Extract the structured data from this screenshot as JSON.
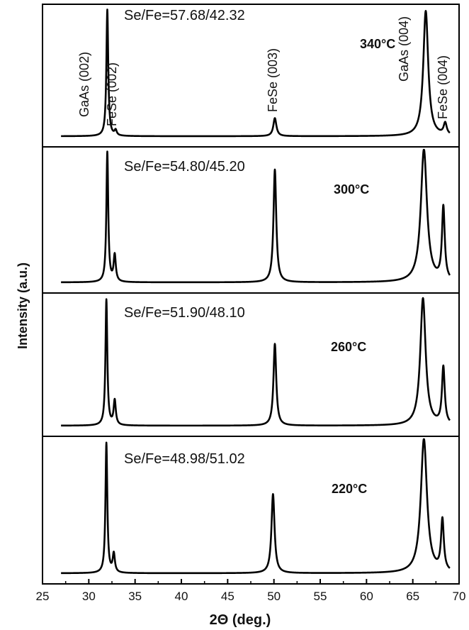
{
  "chart_data": {
    "type": "line",
    "xlabel": "2Θ (deg.)",
    "ylabel": "Intensity (a.u.)",
    "xlim": [
      25,
      70
    ],
    "xticks": [
      "25",
      "30",
      "35",
      "40",
      "45",
      "50",
      "55",
      "60",
      "65",
      "70"
    ],
    "peak_labels": [
      "GaAs (002)",
      "FeSe (002)",
      "FeSe (003)",
      "GaAs (004)",
      "FeSe (004)"
    ],
    "panels": [
      {
        "temperature": "340°C",
        "ratio": "Se/Fe=57.68/42.32",
        "peaks": [
          {
            "x": 32.0,
            "height": 0.98,
            "width": 0.12
          },
          {
            "x": 32.9,
            "height": 0.04,
            "width": 0.14
          },
          {
            "x": 50.1,
            "height": 0.14,
            "width": 0.2
          },
          {
            "x": 66.4,
            "height": 0.97,
            "width": 0.32
          },
          {
            "x": 68.5,
            "height": 0.09,
            "width": 0.2
          }
        ]
      },
      {
        "temperature": "300°C",
        "ratio": "Se/Fe=54.80/45.20",
        "peaks": [
          {
            "x": 32.0,
            "height": 0.98,
            "width": 0.12
          },
          {
            "x": 32.8,
            "height": 0.2,
            "width": 0.14
          },
          {
            "x": 50.1,
            "height": 0.85,
            "width": 0.18
          },
          {
            "x": 66.2,
            "height": 1.0,
            "width": 0.4
          },
          {
            "x": 68.3,
            "height": 0.55,
            "width": 0.18
          }
        ]
      },
      {
        "temperature": "260°C",
        "ratio": "Se/Fe=51.90/48.10",
        "peaks": [
          {
            "x": 31.9,
            "height": 0.97,
            "width": 0.12
          },
          {
            "x": 32.8,
            "height": 0.19,
            "width": 0.14
          },
          {
            "x": 50.1,
            "height": 0.63,
            "width": 0.18
          },
          {
            "x": 66.1,
            "height": 0.98,
            "width": 0.35
          },
          {
            "x": 68.3,
            "height": 0.44,
            "width": 0.18
          }
        ]
      },
      {
        "temperature": "220°C",
        "ratio": "Se/Fe=48.98/51.02",
        "peaks": [
          {
            "x": 31.9,
            "height": 0.97,
            "width": 0.12
          },
          {
            "x": 32.7,
            "height": 0.14,
            "width": 0.14
          },
          {
            "x": 49.9,
            "height": 0.59,
            "width": 0.2
          },
          {
            "x": 66.2,
            "height": 1.0,
            "width": 0.4
          },
          {
            "x": 68.2,
            "height": 0.38,
            "width": 0.18
          }
        ]
      }
    ]
  }
}
